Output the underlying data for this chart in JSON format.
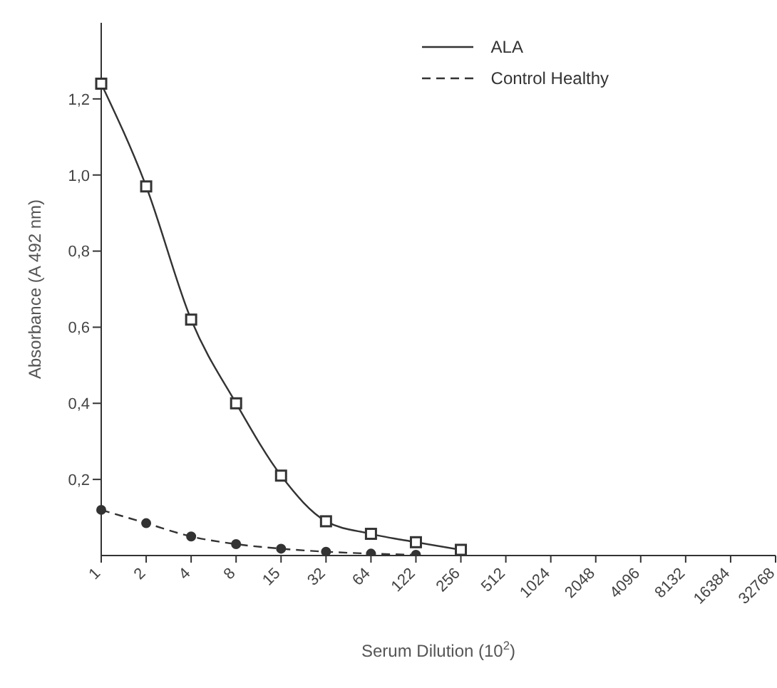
{
  "chart_data": {
    "type": "line",
    "xlabel": "Serum Dilution (10$^{2}$)",
    "ylabel": "Absorbance (A 492 nm)",
    "categories": [
      "1",
      "2",
      "4",
      "8",
      "15",
      "32",
      "64",
      "122",
      "256",
      "512",
      "1024",
      "2048",
      "4096",
      "8132",
      "16384",
      "32768"
    ],
    "ylim": [
      0,
      1.4
    ],
    "yticks": [
      {
        "value": 0.2,
        "label": "0,2"
      },
      {
        "value": 0.4,
        "label": "0,4"
      },
      {
        "value": 0.6,
        "label": "0,6"
      },
      {
        "value": 0.8,
        "label": "0,8"
      },
      {
        "value": 1.0,
        "label": "1,0"
      },
      {
        "value": 1.2,
        "label": "1,2"
      }
    ],
    "legend": "top right",
    "series": [
      {
        "name": "ALA",
        "color": "#333333",
        "marker": "square",
        "line_style": "solid",
        "values": [
          1.24,
          0.97,
          0.62,
          0.4,
          0.21,
          0.09,
          0.057,
          0.035,
          0.015,
          null,
          null,
          null,
          null,
          null,
          null,
          null
        ]
      },
      {
        "name": "Control Healthy",
        "color": "#333333",
        "marker": "circle",
        "line_style": "dashed",
        "values": [
          0.12,
          0.085,
          0.05,
          0.03,
          0.018,
          0.01,
          0.005,
          0.002,
          null,
          null,
          null,
          null,
          null,
          null,
          null,
          null
        ]
      }
    ]
  }
}
